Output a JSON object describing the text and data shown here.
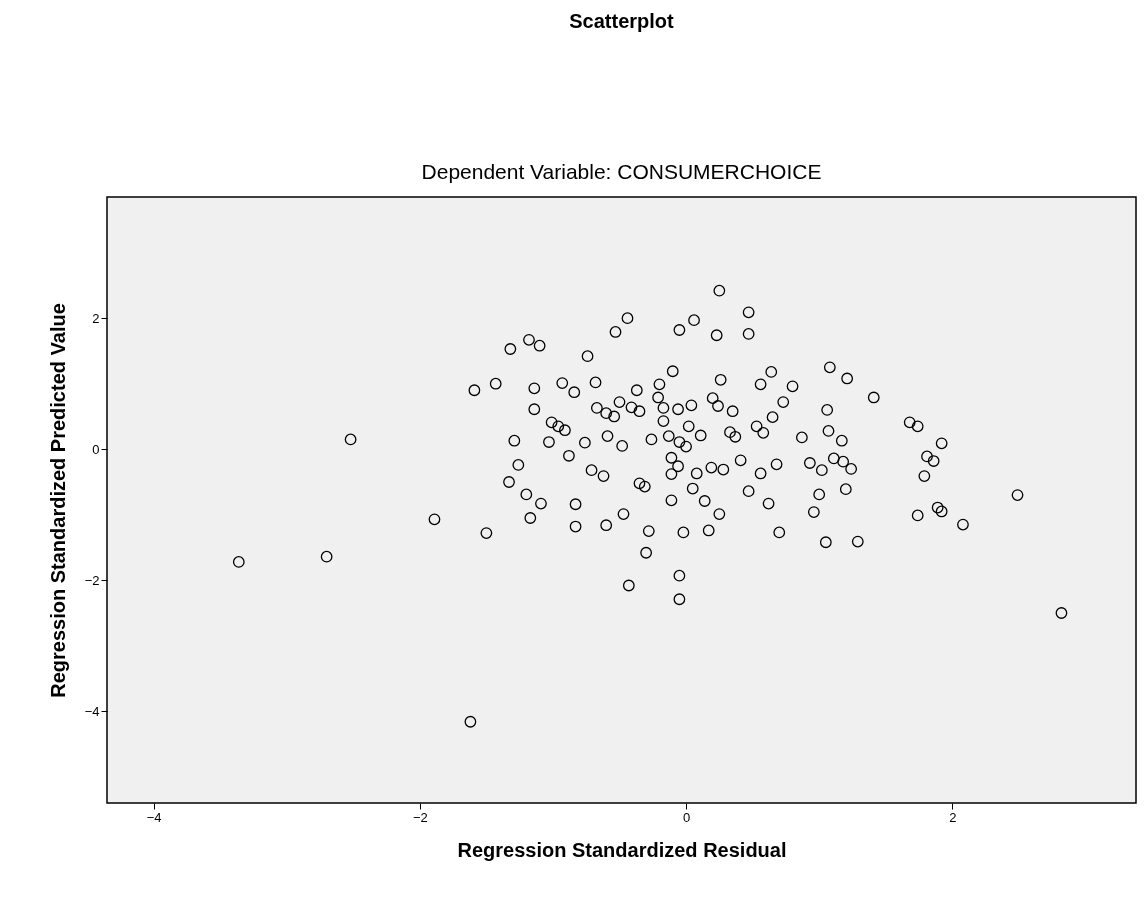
{
  "chart_data": {
    "type": "scatter",
    "title": "Scatterplot",
    "subtitle": "Dependent Variable: CONSUMERCHOICE",
    "xlabel": "Regression Standardized Residual",
    "ylabel": "Regression Standardized Predicted Value",
    "x": [
      -3.36,
      -2.7,
      -2.52,
      -1.89,
      -1.62,
      -1.59,
      -1.5,
      -1.43,
      -1.32,
      -1.29,
      -1.26,
      -1.33,
      -1.2,
      -1.18,
      -1.1,
      -1.14,
      -1.14,
      -1.17,
      -1.09,
      -1.03,
      -1.01,
      -0.96,
      -0.93,
      -0.91,
      -0.88,
      -0.84,
      -0.83,
      -0.83,
      -0.76,
      -0.74,
      -0.68,
      -0.71,
      -0.67,
      -0.62,
      -0.6,
      -0.6,
      -0.59,
      -0.53,
      -0.54,
      -0.5,
      -0.47,
      -0.48,
      -0.44,
      -0.43,
      -0.41,
      -0.37,
      -0.35,
      -0.35,
      -0.31,
      -0.3,
      -0.28,
      -0.26,
      -0.21,
      -0.2,
      -0.17,
      -0.17,
      -0.13,
      -0.11,
      -0.1,
      -0.11,
      -0.11,
      -0.05,
      -0.06,
      -0.06,
      -0.05,
      -0.05,
      -0.05,
      -0.02,
      0.0,
      0.02,
      0.05,
      0.04,
      0.06,
      0.08,
      0.11,
      0.14,
      0.17,
      0.19,
      0.2,
      0.23,
      0.24,
      0.25,
      0.26,
      0.25,
      0.28,
      0.33,
      0.35,
      0.37,
      0.41,
      0.47,
      0.47,
      0.47,
      0.53,
      0.56,
      0.56,
      0.58,
      0.62,
      0.64,
      0.65,
      0.68,
      0.7,
      0.73,
      0.8,
      0.87,
      0.93,
      0.96,
      1.0,
      1.02,
      1.05,
      1.07,
      1.08,
      1.06,
      1.11,
      1.17,
      1.18,
      1.21,
      1.2,
      1.24,
      1.29,
      1.41,
      1.68,
      1.74,
      1.74,
      1.79,
      1.81,
      1.86,
      1.89,
      1.92,
      1.92,
      2.08,
      2.49,
      2.82
    ],
    "series": [
      {
        "color": "#000000",
        "values": [
          -1.72,
          -1.64,
          0.15,
          -1.07,
          -4.16,
          0.9,
          -1.28,
          1.0,
          1.53,
          0.13,
          -0.24,
          -0.5,
          -0.69,
          1.67,
          1.58,
          0.93,
          0.61,
          -1.05,
          -0.83,
          0.11,
          0.41,
          0.35,
          1.01,
          0.29,
          -0.1,
          0.87,
          -0.84,
          -1.18,
          0.1,
          1.42,
          1.02,
          -0.32,
          0.63,
          -0.41,
          0.55,
          -1.16,
          0.2,
          1.79,
          0.5,
          0.72,
          -0.99,
          0.05,
          2.0,
          -2.08,
          0.64,
          0.9,
          0.58,
          -0.52,
          -0.57,
          -1.58,
          -1.25,
          0.15,
          0.79,
          0.99,
          0.63,
          0.43,
          0.2,
          -0.13,
          1.19,
          -0.38,
          -0.78,
          1.82,
          0.61,
          -0.26,
          0.11,
          -1.93,
          -2.29,
          -1.27,
          0.04,
          0.35,
          -0.6,
          0.67,
          1.97,
          -0.37,
          0.21,
          -0.79,
          -1.24,
          -0.28,
          0.78,
          1.74,
          0.66,
          2.42,
          1.06,
          -0.99,
          -0.31,
          0.26,
          0.58,
          0.19,
          -0.17,
          2.09,
          1.76,
          -0.64,
          0.35,
          0.99,
          -0.37,
          0.25,
          -0.83,
          1.18,
          0.49,
          -0.23,
          -1.27,
          0.72,
          0.96,
          0.18,
          -0.21,
          -0.96,
          -0.69,
          -0.32,
          -1.42,
          0.28,
          1.25,
          0.6,
          -0.14,
          0.13,
          -0.19,
          1.08,
          -0.61,
          -0.3,
          -1.41,
          0.79,
          0.41,
          -1.01,
          0.35,
          -0.41,
          -0.11,
          -0.18,
          -0.89,
          0.09,
          -0.95,
          -1.15,
          -0.7,
          -2.5
        ]
      }
    ],
    "xlim": [
      -4.35,
      3.38
    ],
    "ylim": [
      -5.4,
      3.85
    ],
    "xticks": [
      -4,
      -2,
      0,
      2
    ],
    "yticks": [
      -4,
      -2,
      0,
      2
    ],
    "marker": "circle",
    "grid": false
  }
}
